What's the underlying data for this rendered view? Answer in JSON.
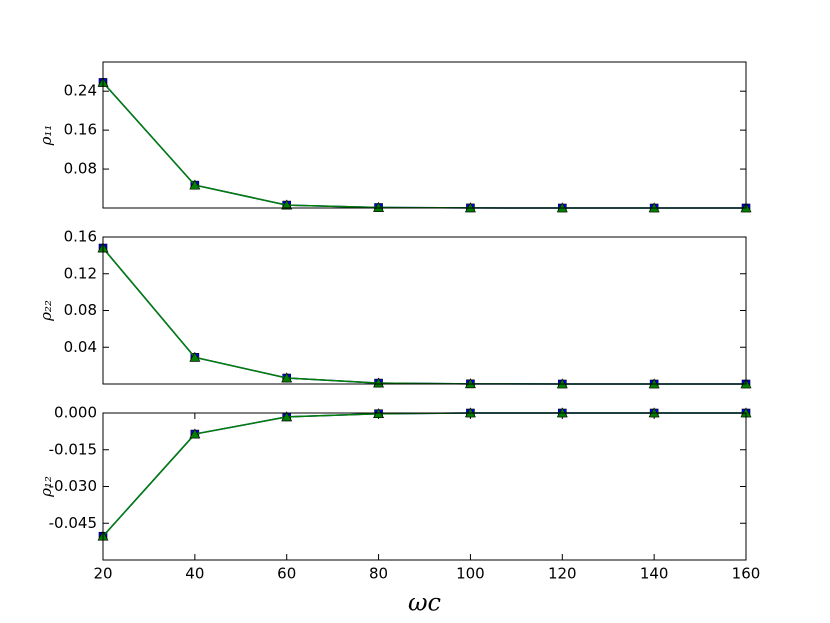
{
  "chart_data": [
    {
      "type": "line",
      "ylabel": "ρ₁₁",
      "x": [
        20,
        40,
        60,
        80,
        100,
        120,
        140,
        160
      ],
      "xlim": [
        20,
        160
      ],
      "ylim": [
        0,
        0.3
      ],
      "yticks": [
        0.08,
        0.16,
        0.24
      ],
      "series": [
        {
          "color": "#0000ff",
          "marker": "square",
          "values": [
            0.258,
            0.047,
            0.006,
            0.001,
            0.0002,
            0,
            0,
            0
          ]
        },
        {
          "color": "#008000",
          "marker": "triangle",
          "values": [
            0.258,
            0.047,
            0.006,
            0.001,
            0.0002,
            0,
            0,
            0
          ]
        }
      ]
    },
    {
      "type": "line",
      "ylabel": "ρ₂₂",
      "x": [
        20,
        40,
        60,
        80,
        100,
        120,
        140,
        160
      ],
      "xlim": [
        20,
        160
      ],
      "ylim": [
        0,
        0.16
      ],
      "yticks": [
        0.04,
        0.08,
        0.12,
        0.16
      ],
      "series": [
        {
          "color": "#0000ff",
          "marker": "square",
          "values": [
            0.148,
            0.029,
            0.0065,
            0.001,
            0.0002,
            0,
            0,
            0
          ]
        },
        {
          "color": "#008000",
          "marker": "triangle",
          "values": [
            0.148,
            0.029,
            0.0065,
            0.001,
            0.0002,
            0,
            0,
            0
          ]
        }
      ]
    },
    {
      "type": "line",
      "ylabel": "ρ₁₂",
      "xlabel": "ωc",
      "x": [
        20,
        40,
        60,
        80,
        100,
        120,
        140,
        160
      ],
      "xlim": [
        20,
        160
      ],
      "xticks": [
        20,
        40,
        60,
        80,
        100,
        120,
        140,
        160
      ],
      "ylim": [
        -0.06,
        0
      ],
      "yticks": [
        {
          "value": 0,
          "label": "0.000"
        },
        -0.015,
        {
          "value": -0.03,
          "label": "-0.030"
        },
        -0.045
      ],
      "series": [
        {
          "color": "#0000ff",
          "marker": "square",
          "values": [
            -0.0503,
            -0.0086,
            -0.0016,
            -0.0003,
            0,
            0,
            0,
            0
          ]
        },
        {
          "color": "#008000",
          "marker": "triangle",
          "values": [
            -0.0503,
            -0.0086,
            -0.0016,
            -0.0003,
            0,
            0,
            0,
            0
          ]
        }
      ]
    }
  ]
}
